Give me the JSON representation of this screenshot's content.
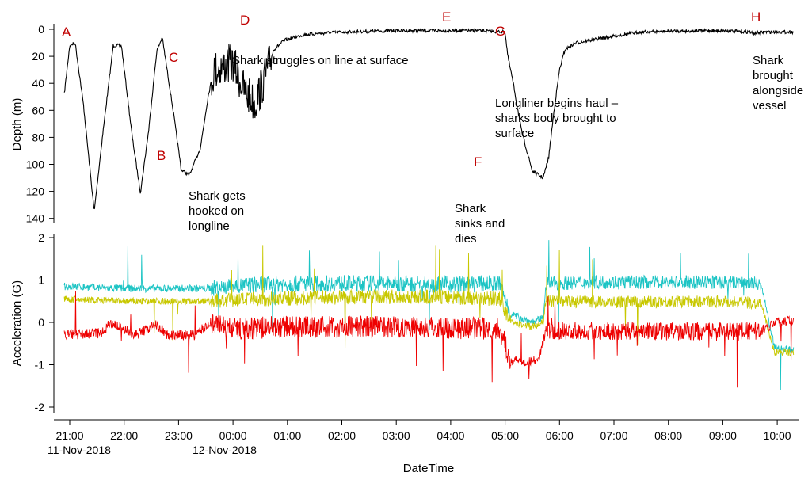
{
  "chart_data": [
    {
      "type": "line",
      "panel": "depth",
      "ylabel": "Depth (m)",
      "yticks": [
        "0",
        "20",
        "40",
        "60",
        "80",
        "100",
        "120",
        "140"
      ],
      "ylim": [
        0,
        140
      ],
      "y_inverted": true,
      "x_range_hours_from_2100": [
        -0.1,
        13.3
      ],
      "series": [
        {
          "color": "#000000",
          "points": [
            [
              -0.1,
              48
            ],
            [
              0.0,
              12
            ],
            [
              0.1,
              10
            ],
            [
              0.25,
              55
            ],
            [
              0.45,
              135
            ],
            [
              0.6,
              80
            ],
            [
              0.8,
              12
            ],
            [
              0.95,
              12
            ],
            [
              1.15,
              80
            ],
            [
              1.3,
              121
            ],
            [
              1.45,
              75
            ],
            [
              1.6,
              16
            ],
            [
              1.7,
              6
            ],
            [
              1.9,
              60
            ],
            [
              2.05,
              104
            ],
            [
              2.2,
              108
            ],
            [
              2.4,
              88
            ],
            [
              2.55,
              48
            ],
            [
              2.65,
              30
            ],
            [
              2.8,
              28
            ],
            [
              3.0,
              25
            ],
            [
              3.2,
              45
            ],
            [
              3.4,
              55
            ],
            [
              3.55,
              40
            ],
            [
              3.75,
              15
            ],
            [
              3.95,
              8
            ],
            [
              4.3,
              4
            ],
            [
              4.6,
              3
            ],
            [
              5.0,
              2
            ],
            [
              6.0,
              1
            ],
            [
              7.0,
              1
            ],
            [
              7.5,
              1
            ],
            [
              8.0,
              2
            ],
            [
              8.05,
              20
            ],
            [
              8.15,
              40
            ],
            [
              8.3,
              75
            ],
            [
              8.5,
              105
            ],
            [
              8.7,
              110
            ],
            [
              8.8,
              95
            ],
            [
              8.9,
              60
            ],
            [
              9.0,
              30
            ],
            [
              9.1,
              15
            ],
            [
              9.3,
              10
            ],
            [
              9.6,
              8
            ],
            [
              10.0,
              5
            ],
            [
              10.5,
              2
            ],
            [
              11.5,
              1
            ],
            [
              12.0,
              1
            ],
            [
              12.5,
              2
            ],
            [
              12.55,
              3
            ],
            [
              12.8,
              2
            ],
            [
              13.3,
              2
            ]
          ]
        }
      ],
      "event_markers": [
        "A",
        "B",
        "C",
        "D",
        "E",
        "F",
        "G",
        "H"
      ]
    },
    {
      "type": "line",
      "panel": "acceleration",
      "ylabel": "Acceleration (G)",
      "yticks": [
        "2",
        "1",
        "0",
        "-1",
        "-2"
      ],
      "ylim": [
        -2,
        2
      ],
      "xlabel": "DateTime",
      "xticks": [
        "21:00",
        "22:00",
        "23:00",
        "00:00",
        "01:00",
        "02:00",
        "03:00",
        "04:00",
        "05:00",
        "06:00",
        "07:00",
        "08:00",
        "09:00",
        "10:00"
      ],
      "date_labels": [
        "11-Nov-2018",
        "12-Nov-2018"
      ],
      "series": [
        {
          "color": "#1cc4c4",
          "points": [
            [
              -0.1,
              0.85
            ],
            [
              1.0,
              0.8
            ],
            [
              2.5,
              0.8
            ],
            [
              3.5,
              0.9
            ],
            [
              5.0,
              0.92
            ],
            [
              7.0,
              0.9
            ],
            [
              7.9,
              0.92
            ],
            [
              8.1,
              0.2
            ],
            [
              8.5,
              0.0
            ],
            [
              8.7,
              0.1
            ],
            [
              8.75,
              0.92
            ],
            [
              10.0,
              0.95
            ],
            [
              12.0,
              0.95
            ],
            [
              12.7,
              0.92
            ],
            [
              12.95,
              -0.6
            ],
            [
              13.3,
              -0.65
            ]
          ]
        },
        {
          "color": "#c8c800",
          "points": [
            [
              -0.1,
              0.55
            ],
            [
              1.0,
              0.5
            ],
            [
              2.5,
              0.5
            ],
            [
              3.5,
              0.55
            ],
            [
              5.0,
              0.6
            ],
            [
              7.0,
              0.6
            ],
            [
              7.9,
              0.55
            ],
            [
              8.1,
              0.0
            ],
            [
              8.5,
              -0.1
            ],
            [
              8.7,
              0.0
            ],
            [
              8.75,
              0.5
            ],
            [
              10.0,
              0.48
            ],
            [
              12.0,
              0.5
            ],
            [
              12.7,
              0.45
            ],
            [
              12.95,
              -0.7
            ],
            [
              13.3,
              -0.72
            ]
          ]
        },
        {
          "color": "#ee0000",
          "points": [
            [
              -0.1,
              -0.3
            ],
            [
              0.6,
              -0.25
            ],
            [
              0.75,
              0.0
            ],
            [
              1.2,
              -0.3
            ],
            [
              1.6,
              -0.05
            ],
            [
              1.8,
              -0.3
            ],
            [
              2.3,
              -0.3
            ],
            [
              2.6,
              0.0
            ],
            [
              3.0,
              -0.15
            ],
            [
              4.0,
              -0.1
            ],
            [
              6.0,
              -0.1
            ],
            [
              7.9,
              -0.15
            ],
            [
              8.1,
              -0.9
            ],
            [
              8.6,
              -0.92
            ],
            [
              8.75,
              -0.2
            ],
            [
              10.0,
              -0.2
            ],
            [
              12.0,
              -0.22
            ],
            [
              12.7,
              -0.2
            ],
            [
              12.95,
              0.0
            ],
            [
              13.3,
              0.05
            ]
          ]
        }
      ]
    }
  ],
  "annotations": {
    "markers": {
      "A": "A",
      "B": "B",
      "C": "C",
      "D": "D",
      "E": "E",
      "F": "F",
      "G": "G",
      "H": "H"
    },
    "struggles": "Shark struggles on line at surface",
    "haul": [
      "Longliner begins haul –",
      "sharks body brought to",
      "surface"
    ],
    "brought_alongside": [
      "Shark",
      "brought",
      "alongside",
      "vessel"
    ],
    "hooked": [
      "Shark gets",
      "hooked on",
      "longline"
    ],
    "sinks": [
      "Shark",
      "sinks and",
      "dies"
    ]
  }
}
